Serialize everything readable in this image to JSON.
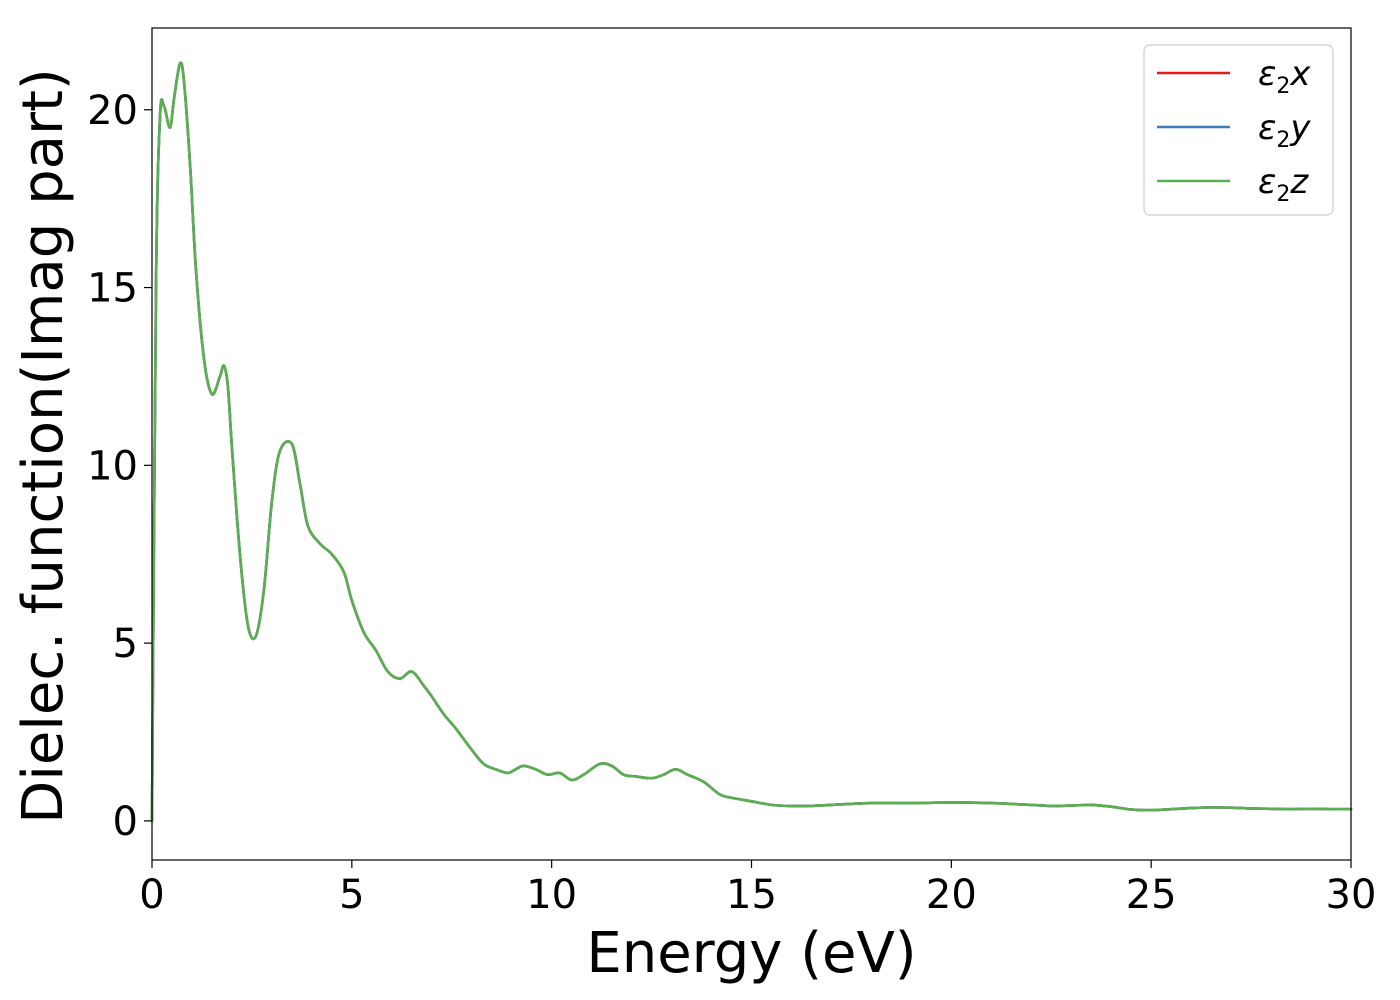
{
  "chart_data": {
    "type": "line",
    "xlabel": "Energy (eV)",
    "ylabel": "Dielec. function(Imag part)",
    "xlim": [
      0,
      30
    ],
    "ylim": [
      -1.1,
      22.3
    ],
    "xticks": [
      0,
      5,
      10,
      15,
      20,
      25,
      30
    ],
    "yticks": [
      0,
      5,
      10,
      15,
      20
    ],
    "grid": false,
    "legend_position": "top-right",
    "x": [
      0.0,
      0.1,
      0.2,
      0.3,
      0.45,
      0.55,
      0.7,
      0.8,
      0.95,
      1.1,
      1.3,
      1.5,
      1.7,
      1.8,
      1.9,
      2.0,
      2.2,
      2.4,
      2.6,
      2.8,
      3.0,
      3.2,
      3.5,
      3.7,
      3.9,
      4.2,
      4.5,
      4.8,
      5.0,
      5.3,
      5.6,
      5.9,
      6.2,
      6.5,
      6.8,
      7.0,
      7.3,
      7.6,
      8.0,
      8.3,
      8.6,
      8.9,
      9.1,
      9.3,
      9.6,
      9.9,
      10.2,
      10.5,
      10.8,
      11.2,
      11.5,
      11.8,
      12.1,
      12.5,
      12.8,
      13.1,
      13.4,
      13.8,
      14.2,
      14.5,
      15.0,
      15.5,
      16.0,
      16.5,
      17.0,
      18.0,
      19.0,
      20.0,
      21.0,
      22.0,
      22.5,
      23.0,
      23.5,
      24.0,
      24.5,
      25.0,
      25.5,
      26.0,
      26.5,
      27.0,
      27.5,
      28.0,
      28.5,
      29.0,
      29.5,
      30.0
    ],
    "series": [
      {
        "name": "ε2x",
        "label_base": "ε",
        "label_sub": "2",
        "label_var": "x",
        "color": "#e41a1c",
        "values": [
          0.0,
          15.0,
          19.8,
          20.1,
          19.5,
          20.3,
          21.3,
          20.8,
          18.5,
          15.5,
          13.0,
          12.0,
          12.5,
          12.8,
          12.2,
          10.5,
          7.5,
          5.5,
          5.2,
          6.5,
          9.0,
          10.4,
          10.6,
          9.5,
          8.3,
          7.8,
          7.5,
          7.0,
          6.2,
          5.3,
          4.8,
          4.2,
          4.0,
          4.2,
          3.8,
          3.5,
          3.0,
          2.6,
          2.0,
          1.6,
          1.45,
          1.35,
          1.45,
          1.55,
          1.45,
          1.3,
          1.35,
          1.15,
          1.3,
          1.6,
          1.55,
          1.3,
          1.25,
          1.2,
          1.3,
          1.45,
          1.3,
          1.1,
          0.75,
          0.65,
          0.55,
          0.45,
          0.42,
          0.42,
          0.45,
          0.5,
          0.5,
          0.52,
          0.5,
          0.45,
          0.42,
          0.43,
          0.45,
          0.4,
          0.32,
          0.3,
          0.33,
          0.36,
          0.38,
          0.37,
          0.35,
          0.34,
          0.33,
          0.34,
          0.33,
          0.33
        ]
      },
      {
        "name": "ε2y",
        "label_base": "ε",
        "label_sub": "2",
        "label_var": "y",
        "color": "#377eb8",
        "values": [
          0.0,
          15.0,
          19.8,
          20.1,
          19.5,
          20.3,
          21.3,
          20.8,
          18.5,
          15.5,
          13.0,
          12.0,
          12.5,
          12.8,
          12.2,
          10.5,
          7.5,
          5.5,
          5.2,
          6.5,
          9.0,
          10.4,
          10.6,
          9.5,
          8.3,
          7.8,
          7.5,
          7.0,
          6.2,
          5.3,
          4.8,
          4.2,
          4.0,
          4.2,
          3.8,
          3.5,
          3.0,
          2.6,
          2.0,
          1.6,
          1.45,
          1.35,
          1.45,
          1.55,
          1.45,
          1.3,
          1.35,
          1.15,
          1.3,
          1.6,
          1.55,
          1.3,
          1.25,
          1.2,
          1.3,
          1.45,
          1.3,
          1.1,
          0.75,
          0.65,
          0.55,
          0.45,
          0.42,
          0.42,
          0.45,
          0.5,
          0.5,
          0.52,
          0.5,
          0.45,
          0.42,
          0.43,
          0.45,
          0.4,
          0.32,
          0.3,
          0.33,
          0.36,
          0.38,
          0.37,
          0.35,
          0.34,
          0.33,
          0.34,
          0.33,
          0.33
        ]
      },
      {
        "name": "ε2z",
        "label_base": "ε",
        "label_sub": "2",
        "label_var": "z",
        "color": "#5aaf50",
        "values": [
          0.0,
          15.0,
          19.8,
          20.1,
          19.5,
          20.3,
          21.3,
          20.8,
          18.5,
          15.5,
          13.0,
          12.0,
          12.5,
          12.8,
          12.2,
          10.5,
          7.5,
          5.5,
          5.2,
          6.5,
          9.0,
          10.4,
          10.6,
          9.5,
          8.3,
          7.8,
          7.5,
          7.0,
          6.2,
          5.3,
          4.8,
          4.2,
          4.0,
          4.2,
          3.8,
          3.5,
          3.0,
          2.6,
          2.0,
          1.6,
          1.45,
          1.35,
          1.45,
          1.55,
          1.45,
          1.3,
          1.35,
          1.15,
          1.3,
          1.6,
          1.55,
          1.3,
          1.25,
          1.2,
          1.3,
          1.45,
          1.3,
          1.1,
          0.75,
          0.65,
          0.55,
          0.45,
          0.42,
          0.42,
          0.45,
          0.5,
          0.5,
          0.52,
          0.5,
          0.45,
          0.42,
          0.43,
          0.45,
          0.4,
          0.32,
          0.3,
          0.33,
          0.36,
          0.38,
          0.37,
          0.35,
          0.34,
          0.33,
          0.34,
          0.33,
          0.33
        ]
      }
    ]
  }
}
